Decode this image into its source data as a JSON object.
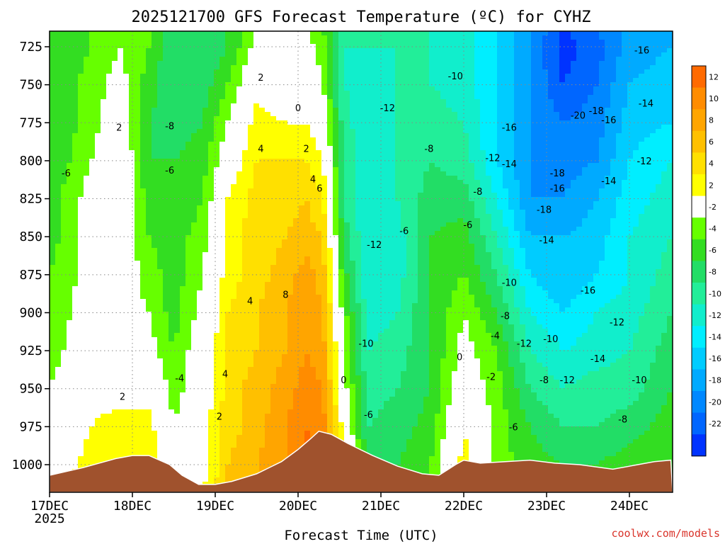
{
  "chart_data": {
    "type": "heatmap",
    "title": "2025121700 GFS Forecast Temperature (ºC) for CYHZ",
    "xlabel": "Forecast Time (UTC)",
    "ylabel": "",
    "x_ticks": [
      {
        "label": "17DEC",
        "sublabel": "2025",
        "value": 0
      },
      {
        "label": "18DEC",
        "value": 1
      },
      {
        "label": "19DEC",
        "value": 2
      },
      {
        "label": "20DEC",
        "value": 3
      },
      {
        "label": "21DEC",
        "value": 4
      },
      {
        "label": "22DEC",
        "value": 5
      },
      {
        "label": "23DEC",
        "value": 6
      },
      {
        "label": "24DEC",
        "value": 7
      }
    ],
    "xlim": [
      0,
      7.5
    ],
    "y_ticks": [
      "725",
      "750",
      "775",
      "800",
      "825",
      "850",
      "875",
      "900",
      "925",
      "950",
      "975",
      "1000"
    ],
    "y_values": [
      725,
      750,
      775,
      800,
      825,
      850,
      875,
      900,
      925,
      950,
      975,
      1000
    ],
    "ylim": [
      712,
      1018
    ],
    "grid": true,
    "colorbar": {
      "levels": [
        {
          "label": "12",
          "value": 12,
          "color": "#ff6a00"
        },
        {
          "label": "10",
          "value": 10,
          "color": "#ff8c00"
        },
        {
          "label": "8",
          "value": 8,
          "color": "#ffa500"
        },
        {
          "label": "6",
          "value": 6,
          "color": "#ffc000"
        },
        {
          "label": "4",
          "value": 4,
          "color": "#ffe000"
        },
        {
          "label": "2",
          "value": 2,
          "color": "#ffff00"
        },
        {
          "label": "-2",
          "value": -2,
          "color": "#ffffff"
        },
        {
          "label": "-4",
          "value": -4,
          "color": "#66ff00"
        },
        {
          "label": "-6",
          "value": -6,
          "color": "#33dd22"
        },
        {
          "label": "-8",
          "value": -8,
          "color": "#22dd66"
        },
        {
          "label": "-10",
          "value": -10,
          "color": "#22ee99"
        },
        {
          "label": "-12",
          "value": -12,
          "color": "#11eecc"
        },
        {
          "label": "-14",
          "value": -14,
          "color": "#00eeff"
        },
        {
          "label": "-16",
          "value": -16,
          "color": "#00ccff"
        },
        {
          "label": "-18",
          "value": -18,
          "color": "#00aaff"
        },
        {
          "label": "-20",
          "value": -20,
          "color": "#0088ff"
        },
        {
          "label": "-22",
          "value": -22,
          "color": "#0066ff"
        },
        {
          "label": "",
          "value": -24,
          "color": "#0033ff"
        }
      ]
    },
    "terrain_color": "#a0522d",
    "terrain_surface_pressure": [
      [
        0.0,
        1007
      ],
      [
        0.4,
        1002
      ],
      [
        0.8,
        996
      ],
      [
        1.0,
        994
      ],
      [
        1.2,
        994
      ],
      [
        1.45,
        1000
      ],
      [
        1.6,
        1007
      ],
      [
        1.8,
        1013
      ],
      [
        2.0,
        1013
      ],
      [
        2.2,
        1011
      ],
      [
        2.5,
        1006
      ],
      [
        2.8,
        998
      ],
      [
        3.0,
        990
      ],
      [
        3.15,
        983
      ],
      [
        3.25,
        978
      ],
      [
        3.4,
        980
      ],
      [
        3.6,
        986
      ],
      [
        3.9,
        994
      ],
      [
        4.2,
        1001
      ],
      [
        4.5,
        1006
      ],
      [
        4.7,
        1007
      ],
      [
        4.9,
        1000
      ],
      [
        5.0,
        997
      ],
      [
        5.2,
        999
      ],
      [
        5.5,
        998
      ],
      [
        5.8,
        997
      ],
      [
        6.1,
        999
      ],
      [
        6.4,
        1000
      ],
      [
        6.8,
        1003
      ],
      [
        7.1,
        1000
      ],
      [
        7.3,
        998
      ],
      [
        7.5,
        997
      ]
    ],
    "temperature_field": {
      "times": [
        0.0,
        0.5,
        0.85,
        1.2,
        1.5,
        1.85,
        2.15,
        2.5,
        2.85,
        3.1,
        3.3,
        3.55,
        3.85,
        4.2,
        4.6,
        5.0,
        5.4,
        5.8,
        6.2,
        6.6,
        7.0,
        7.5
      ],
      "pressures": [
        712,
        725,
        750,
        775,
        800,
        825,
        850,
        875,
        900,
        925,
        950,
        975,
        1000,
        1018
      ],
      "values_by_time": [
        [
          -6,
          -6,
          -6,
          -6,
          -6,
          -5,
          -5,
          -4,
          -4,
          -3,
          -2,
          -1,
          0,
          1
        ],
        [
          -4,
          -4,
          -3,
          -3,
          -2,
          -1,
          -1,
          -1,
          0,
          0,
          1,
          2,
          3,
          4
        ],
        [
          -2,
          -2,
          -1,
          0,
          1,
          1,
          0,
          0,
          -1,
          0,
          1,
          3,
          4,
          5
        ],
        [
          -4,
          -4,
          -5,
          -6,
          -6,
          -5,
          -4,
          -3,
          -2,
          -1,
          1,
          3,
          4,
          5
        ],
        [
          -8,
          -8,
          -8,
          -7,
          -6,
          -6,
          -5,
          -5,
          -5,
          -4,
          -3,
          -2,
          -1,
          0
        ],
        [
          -8,
          -8,
          -7,
          -6,
          -5,
          -4,
          -3,
          -2,
          -1,
          0,
          0,
          1,
          1,
          2
        ],
        [
          -6,
          -6,
          -4,
          -2,
          0,
          2,
          3,
          3,
          4,
          4,
          5,
          5,
          6,
          6
        ],
        [
          -2,
          -1,
          1,
          3,
          4,
          5,
          5,
          5,
          6,
          6,
          7,
          7,
          8,
          8
        ],
        [
          -2,
          -1,
          0,
          2,
          4,
          5,
          6,
          7,
          8,
          8,
          9,
          10,
          10,
          10
        ],
        [
          -2,
          -1,
          0,
          2,
          4,
          6,
          7,
          9,
          10,
          10,
          11,
          12,
          13,
          13
        ],
        [
          -4,
          -3,
          -2,
          0,
          2,
          4,
          6,
          7,
          8,
          9,
          10,
          11,
          12,
          12
        ],
        [
          -10,
          -10,
          -10,
          -9,
          -8,
          -8,
          -7,
          -5,
          -3,
          -2,
          -1,
          1,
          2,
          2
        ],
        [
          -10,
          -10,
          -11,
          -12,
          -12,
          -12,
          -12,
          -12,
          -11,
          -10,
          -9,
          -8,
          -7,
          -6
        ],
        [
          -10,
          -10,
          -10,
          -10,
          -10,
          -10,
          -11,
          -11,
          -10,
          -9,
          -8,
          -7,
          -6,
          -6
        ],
        [
          -10,
          -10,
          -10,
          -9,
          -8,
          -7,
          -6,
          -6,
          -6,
          -6,
          -6,
          -5,
          -4,
          -4
        ],
        [
          -11,
          -11,
          -11,
          -10,
          -9,
          -7,
          -5,
          -4,
          -2,
          -1,
          0,
          2,
          3,
          3
        ],
        [
          -14,
          -14,
          -14,
          -14,
          -14,
          -12,
          -10,
          -8,
          -6,
          -4,
          -3,
          -3,
          -3,
          -3
        ],
        [
          -18,
          -18,
          -18,
          -18,
          -18,
          -18,
          -16,
          -14,
          -12,
          -10,
          -8,
          -6,
          -5,
          -5
        ],
        [
          -22,
          -23,
          -22,
          -20,
          -19,
          -18,
          -16,
          -16,
          -14,
          -12,
          -10,
          -8,
          -6,
          -6
        ],
        [
          -20,
          -21,
          -20,
          -19,
          -18,
          -16,
          -15,
          -14,
          -12,
          -11,
          -9,
          -8,
          -6,
          -6
        ],
        [
          -17,
          -17,
          -16,
          -15,
          -14,
          -13,
          -12,
          -12,
          -11,
          -10,
          -9,
          -7,
          -5,
          -5
        ],
        [
          -16,
          -16,
          -15,
          -14,
          -12,
          -11,
          -10,
          -9,
          -8,
          -7,
          -6,
          -5,
          -4,
          -4
        ]
      ]
    },
    "contour_labels": [
      {
        "text": "-6",
        "t": 0.2,
        "p": 808
      },
      {
        "text": "2",
        "t": 0.84,
        "p": 778
      },
      {
        "text": "-8",
        "t": 1.45,
        "p": 777
      },
      {
        "text": "-6",
        "t": 1.45,
        "p": 806
      },
      {
        "text": "2",
        "t": 0.88,
        "p": 955
      },
      {
        "text": "-4",
        "t": 1.57,
        "p": 943
      },
      {
        "text": "2",
        "t": 2.55,
        "p": 745
      },
      {
        "text": "0",
        "t": 3.0,
        "p": 765
      },
      {
        "text": "4",
        "t": 2.55,
        "p": 792
      },
      {
        "text": "2",
        "t": 3.1,
        "p": 792
      },
      {
        "text": "4",
        "t": 3.18,
        "p": 812
      },
      {
        "text": "6",
        "t": 3.26,
        "p": 818
      },
      {
        "text": "4",
        "t": 2.42,
        "p": 892
      },
      {
        "text": "8",
        "t": 2.85,
        "p": 888
      },
      {
        "text": "4",
        "t": 2.12,
        "p": 940
      },
      {
        "text": "2",
        "t": 2.05,
        "p": 968
      },
      {
        "text": "0",
        "t": 3.55,
        "p": 944
      },
      {
        "text": "-12",
        "t": 4.08,
        "p": 765
      },
      {
        "text": "-8",
        "t": 4.58,
        "p": 792
      },
      {
        "text": "-10",
        "t": 4.9,
        "p": 744
      },
      {
        "text": "-6",
        "t": 4.28,
        "p": 846
      },
      {
        "text": "-12",
        "t": 3.92,
        "p": 855
      },
      {
        "text": "-10",
        "t": 3.82,
        "p": 920
      },
      {
        "text": "-6",
        "t": 3.85,
        "p": 967
      },
      {
        "text": "-12",
        "t": 5.35,
        "p": 798
      },
      {
        "text": "-8",
        "t": 5.17,
        "p": 820
      },
      {
        "text": "-6",
        "t": 5.05,
        "p": 842
      },
      {
        "text": "-16",
        "t": 5.55,
        "p": 778
      },
      {
        "text": "-14",
        "t": 5.55,
        "p": 802
      },
      {
        "text": "-10",
        "t": 5.55,
        "p": 880
      },
      {
        "text": "-8",
        "t": 5.5,
        "p": 902
      },
      {
        "text": "-4",
        "t": 5.38,
        "p": 915
      },
      {
        "text": "-2",
        "t": 5.33,
        "p": 942
      },
      {
        "text": "0",
        "t": 4.95,
        "p": 929
      },
      {
        "text": "-6",
        "t": 5.6,
        "p": 975
      },
      {
        "text": "-18",
        "t": 5.97,
        "p": 832
      },
      {
        "text": "-16",
        "t": 6.13,
        "p": 818
      },
      {
        "text": "-18",
        "t": 6.13,
        "p": 808
      },
      {
        "text": "-14",
        "t": 6.0,
        "p": 852
      },
      {
        "text": "-12",
        "t": 5.73,
        "p": 920
      },
      {
        "text": "-10",
        "t": 6.05,
        "p": 917
      },
      {
        "text": "-8",
        "t": 5.97,
        "p": 944
      },
      {
        "text": "-12",
        "t": 6.25,
        "p": 944
      },
      {
        "text": "-16",
        "t": 6.5,
        "p": 885
      },
      {
        "text": "-20",
        "t": 6.38,
        "p": 770
      },
      {
        "text": "-18",
        "t": 6.6,
        "p": 767
      },
      {
        "text": "-16",
        "t": 6.75,
        "p": 773
      },
      {
        "text": "-14",
        "t": 6.75,
        "p": 813
      },
      {
        "text": "-12",
        "t": 6.85,
        "p": 906
      },
      {
        "text": "-14",
        "t": 6.62,
        "p": 930
      },
      {
        "text": "-10",
        "t": 7.12,
        "p": 944
      },
      {
        "text": "-8",
        "t": 6.92,
        "p": 970
      },
      {
        "text": "-16",
        "t": 7.15,
        "p": 727
      },
      {
        "text": "-14",
        "t": 7.2,
        "p": 762
      },
      {
        "text": "-12",
        "t": 7.18,
        "p": 800
      }
    ]
  },
  "credit": "coolwx.com/models"
}
